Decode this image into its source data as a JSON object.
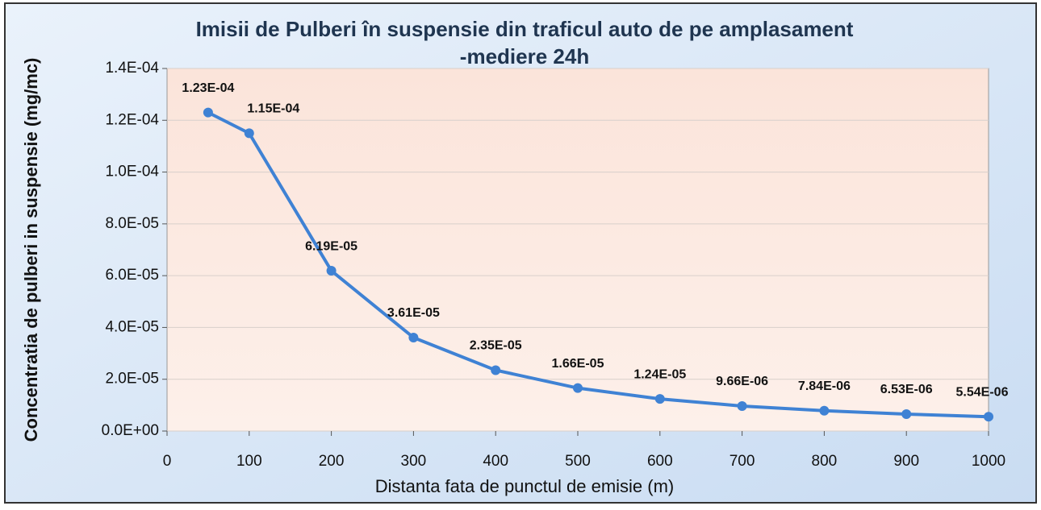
{
  "chart_data": {
    "type": "line",
    "title": [
      "Imisii de Pulberi în suspensie din traficul auto de pe amplasament",
      "-mediere 24h"
    ],
    "x_label": "Distanta fata de punctul de emisie (m)",
    "y_label": "Concentratia de pulberi in suspensie (mg/mc)",
    "x": [
      50,
      100,
      200,
      300,
      400,
      500,
      600,
      700,
      800,
      900,
      1000
    ],
    "series": [
      {
        "name": "Concentratia",
        "color": "#3f82d4",
        "values": [
          0.000123,
          0.000115,
          6.19e-05,
          3.61e-05,
          2.35e-05,
          1.66e-05,
          1.24e-05,
          9.66e-06,
          7.84e-06,
          6.53e-06,
          5.54e-06
        ],
        "value_labels": [
          "1.23E-04",
          "1.15E-04",
          "6.19E-05",
          "3.61E-05",
          "2.35E-05",
          "1.66E-05",
          "1.24E-05",
          "9.66E-06",
          "7.84E-06",
          "6.53E-06",
          "5.54E-06"
        ]
      }
    ],
    "xlim": [
      0,
      1000
    ],
    "xticks": [
      0,
      100,
      200,
      300,
      400,
      500,
      600,
      700,
      800,
      900,
      1000
    ],
    "ylim": [
      0,
      0.00014
    ],
    "yticks": [
      {
        "value": 0,
        "label": "0.0E+00"
      },
      {
        "value": 2e-05,
        "label": "2.0E-05"
      },
      {
        "value": 4e-05,
        "label": "4.0E-05"
      },
      {
        "value": 6e-05,
        "label": "6.0E-05"
      },
      {
        "value": 8e-05,
        "label": "8.0E-05"
      },
      {
        "value": 0.0001,
        "label": "1.0E-04"
      },
      {
        "value": 0.00012,
        "label": "1.2E-04"
      },
      {
        "value": 0.00014,
        "label": "1.4E-04"
      }
    ],
    "grid": true
  }
}
